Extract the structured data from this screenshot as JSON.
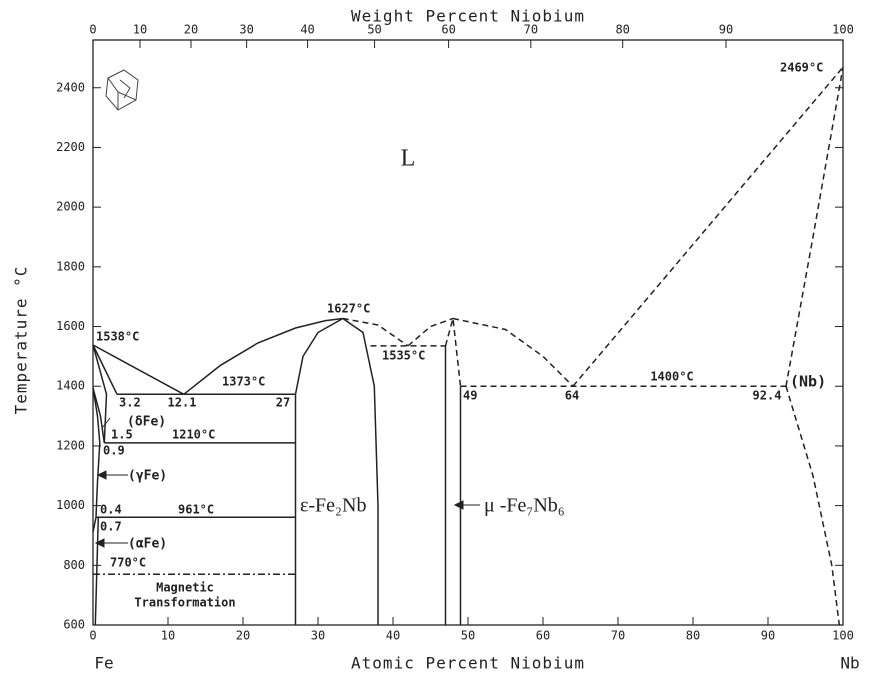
{
  "chart_data": {
    "type": "phase-diagram",
    "title": "Weight Percent Niobium",
    "xlabel": "Atomic Percent Niobium",
    "ylabel": "Temperature °C",
    "left_element": "Fe",
    "right_element": "Nb",
    "xlim": [
      0,
      100
    ],
    "ylim": [
      600,
      2560
    ],
    "xticks": [
      0,
      10,
      20,
      30,
      40,
      50,
      60,
      70,
      80,
      90,
      100
    ],
    "x2ticks": [
      0,
      10,
      20,
      30,
      40,
      50,
      60,
      70,
      80,
      90,
      100
    ],
    "yticks": [
      600,
      800,
      1000,
      1200,
      1400,
      1600,
      1800,
      2000,
      2200,
      2400
    ],
    "grid": false,
    "color": "#222222",
    "lines": [
      {
        "style": "solid",
        "x": [
          0,
          12.1
        ],
        "y": [
          1538,
          1373
        ]
      },
      {
        "style": "solid",
        "x": [
          12.1,
          17,
          22,
          27,
          31,
          33.3
        ],
        "y": [
          1373,
          1470,
          1545,
          1595,
          1620,
          1627
        ]
      },
      {
        "style": "solid",
        "x": [
          0,
          3.2
        ],
        "y": [
          1538,
          1373
        ]
      },
      {
        "style": "solid",
        "x": [
          0,
          1.8,
          1.5
        ],
        "y": [
          1538,
          1373,
          1210
        ]
      },
      {
        "style": "solid",
        "x": [
          0,
          1.0,
          1.5
        ],
        "y": [
          1394,
          1300,
          1210
        ]
      },
      {
        "style": "solid",
        "x": [
          0,
          0.6,
          0.9
        ],
        "y": [
          1394,
          1300,
          1210
        ]
      },
      {
        "style": "solid",
        "x": [
          0.9,
          0.6,
          0.4
        ],
        "y": [
          1210,
          1080,
          961
        ]
      },
      {
        "style": "solid",
        "x": [
          0,
          0.4
        ],
        "y": [
          912,
          961
        ]
      },
      {
        "style": "solid",
        "x": [
          0.7,
          0.5,
          0.3
        ],
        "y": [
          961,
          780,
          600
        ]
      },
      {
        "style": "solid",
        "x": [
          3.2,
          27
        ],
        "y": [
          1373,
          1373
        ]
      },
      {
        "style": "solid",
        "x": [
          1.5,
          27
        ],
        "y": [
          1210,
          1210
        ]
      },
      {
        "style": "solid",
        "x": [
          0.4,
          27
        ],
        "y": [
          961,
          961
        ]
      },
      {
        "style": "solid",
        "x": [
          27,
          27,
          28,
          30,
          33.3
        ],
        "y": [
          600,
          1373,
          1500,
          1580,
          1627
        ]
      },
      {
        "style": "solid",
        "x": [
          33.3,
          36,
          37.5,
          38,
          38
        ],
        "y": [
          1627,
          1580,
          1400,
          1000,
          600
        ]
      },
      {
        "style": "solid",
        "x": [
          47,
          47
        ],
        "y": [
          600,
          1535
        ]
      },
      {
        "style": "solid",
        "x": [
          49,
          49
        ],
        "y": [
          600,
          1400
        ]
      },
      {
        "style": "dashed",
        "x": [
          33.3,
          38,
          42
        ],
        "y": [
          1627,
          1605,
          1535
        ]
      },
      {
        "style": "dashed",
        "x": [
          42,
          45,
          48
        ],
        "y": [
          1535,
          1600,
          1627
        ]
      },
      {
        "style": "dashed",
        "x": [
          37,
          47
        ],
        "y": [
          1535,
          1535
        ]
      },
      {
        "style": "dashed",
        "x": [
          47,
          48,
          49
        ],
        "y": [
          1535,
          1627,
          1400
        ]
      },
      {
        "style": "dashed",
        "x": [
          48,
          55,
          60,
          64
        ],
        "y": [
          1627,
          1590,
          1500,
          1400
        ]
      },
      {
        "style": "dashed",
        "x": [
          49,
          92.4
        ],
        "y": [
          1400,
          1400
        ]
      },
      {
        "style": "dashed",
        "x": [
          64,
          100
        ],
        "y": [
          1400,
          2469
        ]
      },
      {
        "style": "dashed",
        "x": [
          92.4,
          96,
          100
        ],
        "y": [
          1400,
          1900,
          2469
        ]
      },
      {
        "style": "dashed",
        "x": [
          92.4,
          96,
          98.5,
          99.5
        ],
        "y": [
          1400,
          1100,
          800,
          600
        ]
      },
      {
        "style": "dashdot",
        "x": [
          0,
          27
        ],
        "y": [
          770,
          770
        ]
      }
    ],
    "annotations": [
      "L",
      "1538°C",
      "1627°C",
      "2469°C",
      "1535°C",
      "1373°C",
      "12.1",
      "27",
      "3.2",
      "(δFe)",
      "1.5",
      "1210°C",
      "0.9",
      "(γFe)",
      "0.4",
      "961°C",
      "0.7",
      "(αFe)",
      "770°C",
      "Magnetic",
      "Transformation",
      "ε-Fe₂Nb",
      "μ -Fe₇Nb₆",
      "49",
      "64",
      "1400°C",
      "92.4",
      "(Nb)"
    ]
  }
}
